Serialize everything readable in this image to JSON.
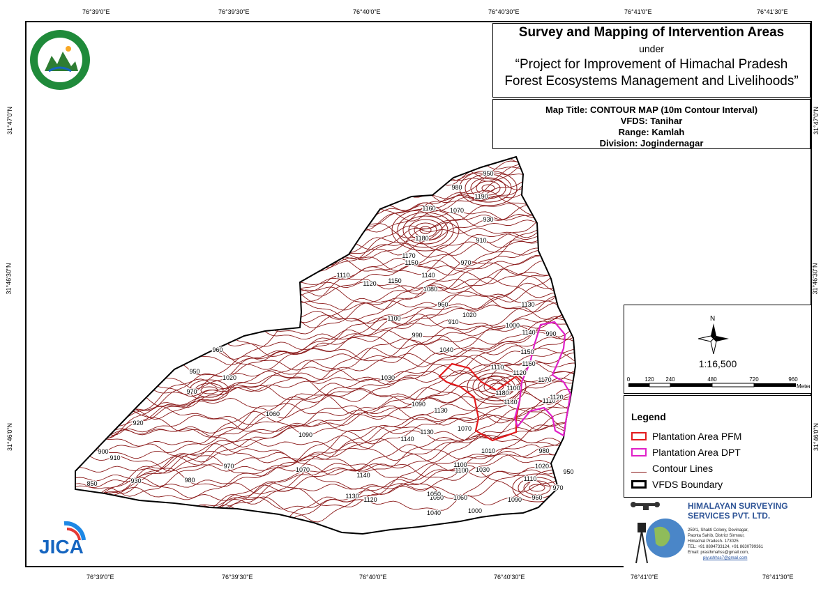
{
  "header": {
    "title": "Survey and Mapping of Intervention Areas",
    "under": "under",
    "project_line1": "“Project for Improvement of Himachal Pradesh",
    "project_line2": "Forest Ecosystems Management and Livelihoods”"
  },
  "info": {
    "map_title": "Map Title: CONTOUR MAP (10m Contour Interval)",
    "vfds": "VFDS: Tanihar",
    "range": "Range: Kamlah",
    "division": "Division: Jogindernagar"
  },
  "graticule": {
    "top": [
      "76°39'0\"E",
      "76°39'30\"E",
      "76°40'0\"E",
      "76°40'30\"E",
      "76°41'0\"E",
      "76°41'30\"E"
    ],
    "bottom": [
      "76°39'0\"E",
      "76°39'30\"E",
      "76°40'0\"E",
      "76°40'30\"E",
      "76°41'0\"E",
      "76°41'30\"E"
    ],
    "left": [
      "31°47'0\"N",
      "31°46'30\"N",
      "31°46'0\"N"
    ],
    "right": [
      "31°47'0\"N",
      "31°46'30\"N",
      "31°46'0\"N"
    ]
  },
  "scale": {
    "north": "N",
    "ratio": "1:16,500",
    "ticks": [
      "0",
      "120",
      "240",
      "480",
      "720",
      "960"
    ],
    "unit": "Meters"
  },
  "legend": {
    "title": "Legend",
    "items": [
      {
        "label": "Plantation Area PFM",
        "color": "#e31a1c",
        "kind": "polygon"
      },
      {
        "label": "Plantation Area DPT",
        "color": "#e020c8",
        "kind": "polygon"
      },
      {
        "label": "Contour Lines",
        "color": "#8b1a1a",
        "kind": "line"
      },
      {
        "label": "VFDS Boundary",
        "color": "#000000",
        "kind": "polygon"
      }
    ]
  },
  "company": {
    "name_line1": "HIMALAYAN SURVEYING",
    "name_line2": "SERVICES PVT. LTD.",
    "addr1": "259/1, Shakti Colony, Devinagar,",
    "addr2": "Paonta Sahib, District Sirmour,",
    "addr3": "Himachal Pradesh- 173025",
    "tel": "TEL: +91 8894733124, +91 8630799361",
    "email": "Email: prasthmahss@gmail.com,",
    "email2": "piyushhss7@gmail.com"
  },
  "logos": {
    "forest_logo": "HP Forest Department emblem",
    "jica": "JICA"
  },
  "contour_labels": [
    "950",
    "980",
    "1070",
    "1160",
    "1190",
    "930",
    "910",
    "970",
    "1170",
    "1180",
    "1150",
    "1140",
    "1110",
    "1120",
    "1100",
    "1080",
    "1150",
    "990",
    "960",
    "1020",
    "910",
    "1130",
    "1000",
    "1140",
    "990",
    "1040",
    "1030",
    "1110",
    "1120",
    "1100",
    "1180",
    "1150",
    "1160",
    "1170",
    "1140",
    "1090",
    "1130",
    "1060",
    "1090",
    "1050",
    "1020",
    "960",
    "950",
    "970",
    "920",
    "910",
    "900",
    "850",
    "930",
    "980",
    "970",
    "1070",
    "1140",
    "1130",
    "1120",
    "1050",
    "1060",
    "1000",
    "1040",
    "1090",
    "1100",
    "1030",
    "1010",
    "1020",
    "980",
    "950",
    "970",
    "960",
    "1110",
    "1110",
    "1120",
    "1130",
    "1140",
    "1070",
    "1100"
  ],
  "colors": {
    "contour": "#8b1a1a",
    "pfm": "#e31a1c",
    "dpt": "#e020c8",
    "boundary": "#000000",
    "company_blue": "#2f5597"
  }
}
